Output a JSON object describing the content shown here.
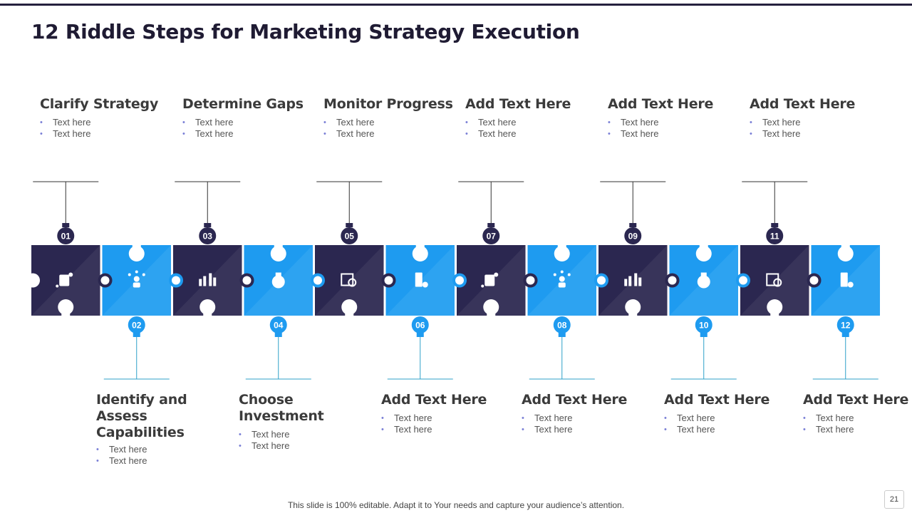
{
  "slide": {
    "title_number": "12",
    "title_text": "Riddle Steps for Marketing Strategy Execution",
    "footer": "This slide is 100% editable. Adapt it to Your needs and capture your audience’s attention.",
    "page_number": "21"
  },
  "colors": {
    "dark": "#2b2750",
    "dark_shade": "#433f63",
    "blue": "#1e9bf0",
    "blue_shade": "#3aa9f3",
    "line": "#333333",
    "line_blue": "#2fa0c9"
  },
  "steps": [
    {
      "number": "01",
      "heading": "Clarify Strategy",
      "bullets": [
        "Text here",
        "Text here"
      ],
      "icon": "chess-knight-icon",
      "position": "top"
    },
    {
      "number": "02",
      "heading": "Identify and Assess Capabilities",
      "bullets": [
        "Text here",
        "Text here"
      ],
      "icon": "network-person-icon",
      "position": "bottom"
    },
    {
      "number": "03",
      "heading": "Determine Gaps",
      "bullets": [
        "Text here",
        "Text here"
      ],
      "icon": "analytics-chart-icon",
      "position": "top"
    },
    {
      "number": "04",
      "heading": "Choose Investment",
      "bullets": [
        "Text here",
        "Text here"
      ],
      "icon": "money-bag-icon",
      "position": "bottom"
    },
    {
      "number": "05",
      "heading": "Monitor Progress",
      "bullets": [
        "Text here",
        "Text here"
      ],
      "icon": "chart-magnifier-icon",
      "position": "top"
    },
    {
      "number": "06",
      "heading": "Add Text Here",
      "bullets": [
        "Text here",
        "Text here"
      ],
      "icon": "rook-coin-icon",
      "position": "bottom"
    },
    {
      "number": "07",
      "heading": "Add Text Here",
      "bullets": [
        "Text here",
        "Text here"
      ],
      "icon": "gear-brain-icon",
      "position": "top"
    },
    {
      "number": "08",
      "heading": "Add Text Here",
      "bullets": [
        "Text here",
        "Text here"
      ],
      "icon": "money-hand-icon",
      "position": "bottom"
    },
    {
      "number": "09",
      "heading": "Add Text Here",
      "bullets": [
        "Text here",
        "Text here"
      ],
      "icon": "presentation-board-icon",
      "position": "top"
    },
    {
      "number": "10",
      "heading": "Add Text Here",
      "bullets": [
        "Text here",
        "Text here"
      ],
      "icon": "dollar-network-icon",
      "position": "bottom"
    },
    {
      "number": "11",
      "heading": "Add Text Here",
      "bullets": [
        "Text here",
        "Text here"
      ],
      "icon": "target-ladder-icon",
      "position": "top"
    },
    {
      "number": "12",
      "heading": "Add Text Here",
      "bullets": [
        "Text here",
        "Text here"
      ],
      "icon": "handshake-icon",
      "position": "bottom"
    }
  ]
}
